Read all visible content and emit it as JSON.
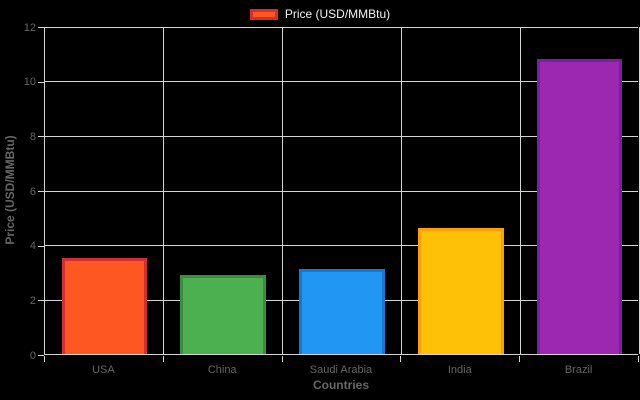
{
  "legend": {
    "label": "Price (USD/MMBtu)",
    "position": "top"
  },
  "chart_data": {
    "type": "bar",
    "title": "",
    "categories": [
      "USA",
      "China",
      "Saudi Arabia",
      "India",
      "Brazil"
    ],
    "series": [
      {
        "name": "Price (USD/MMBtu)",
        "values": [
          3.5,
          2.9,
          3.1,
          4.6,
          10.8
        ]
      }
    ],
    "xlabel": "Countries",
    "ylabel": "Price (USD/MMBtu)",
    "ylim": [
      0,
      12
    ],
    "yticks": [
      0,
      2,
      4,
      6,
      8,
      10,
      12
    ],
    "grid": true,
    "legend_position": "top",
    "bar_fill_colors": [
      "#FF5722",
      "#4CAF50",
      "#2196F3",
      "#FFC107",
      "#9C27B0"
    ],
    "bar_border_colors": [
      "#D32F2F",
      "#388E3C",
      "#1976D2",
      "#FFA000",
      "#7B1FA2"
    ]
  },
  "colors": {
    "background": "#000000",
    "grid": "#d5d5d5",
    "axis_line": "#d5d5d5",
    "tick_label": "#666666",
    "axis_title": "#666666",
    "legend_text": "#f2f2f2"
  }
}
